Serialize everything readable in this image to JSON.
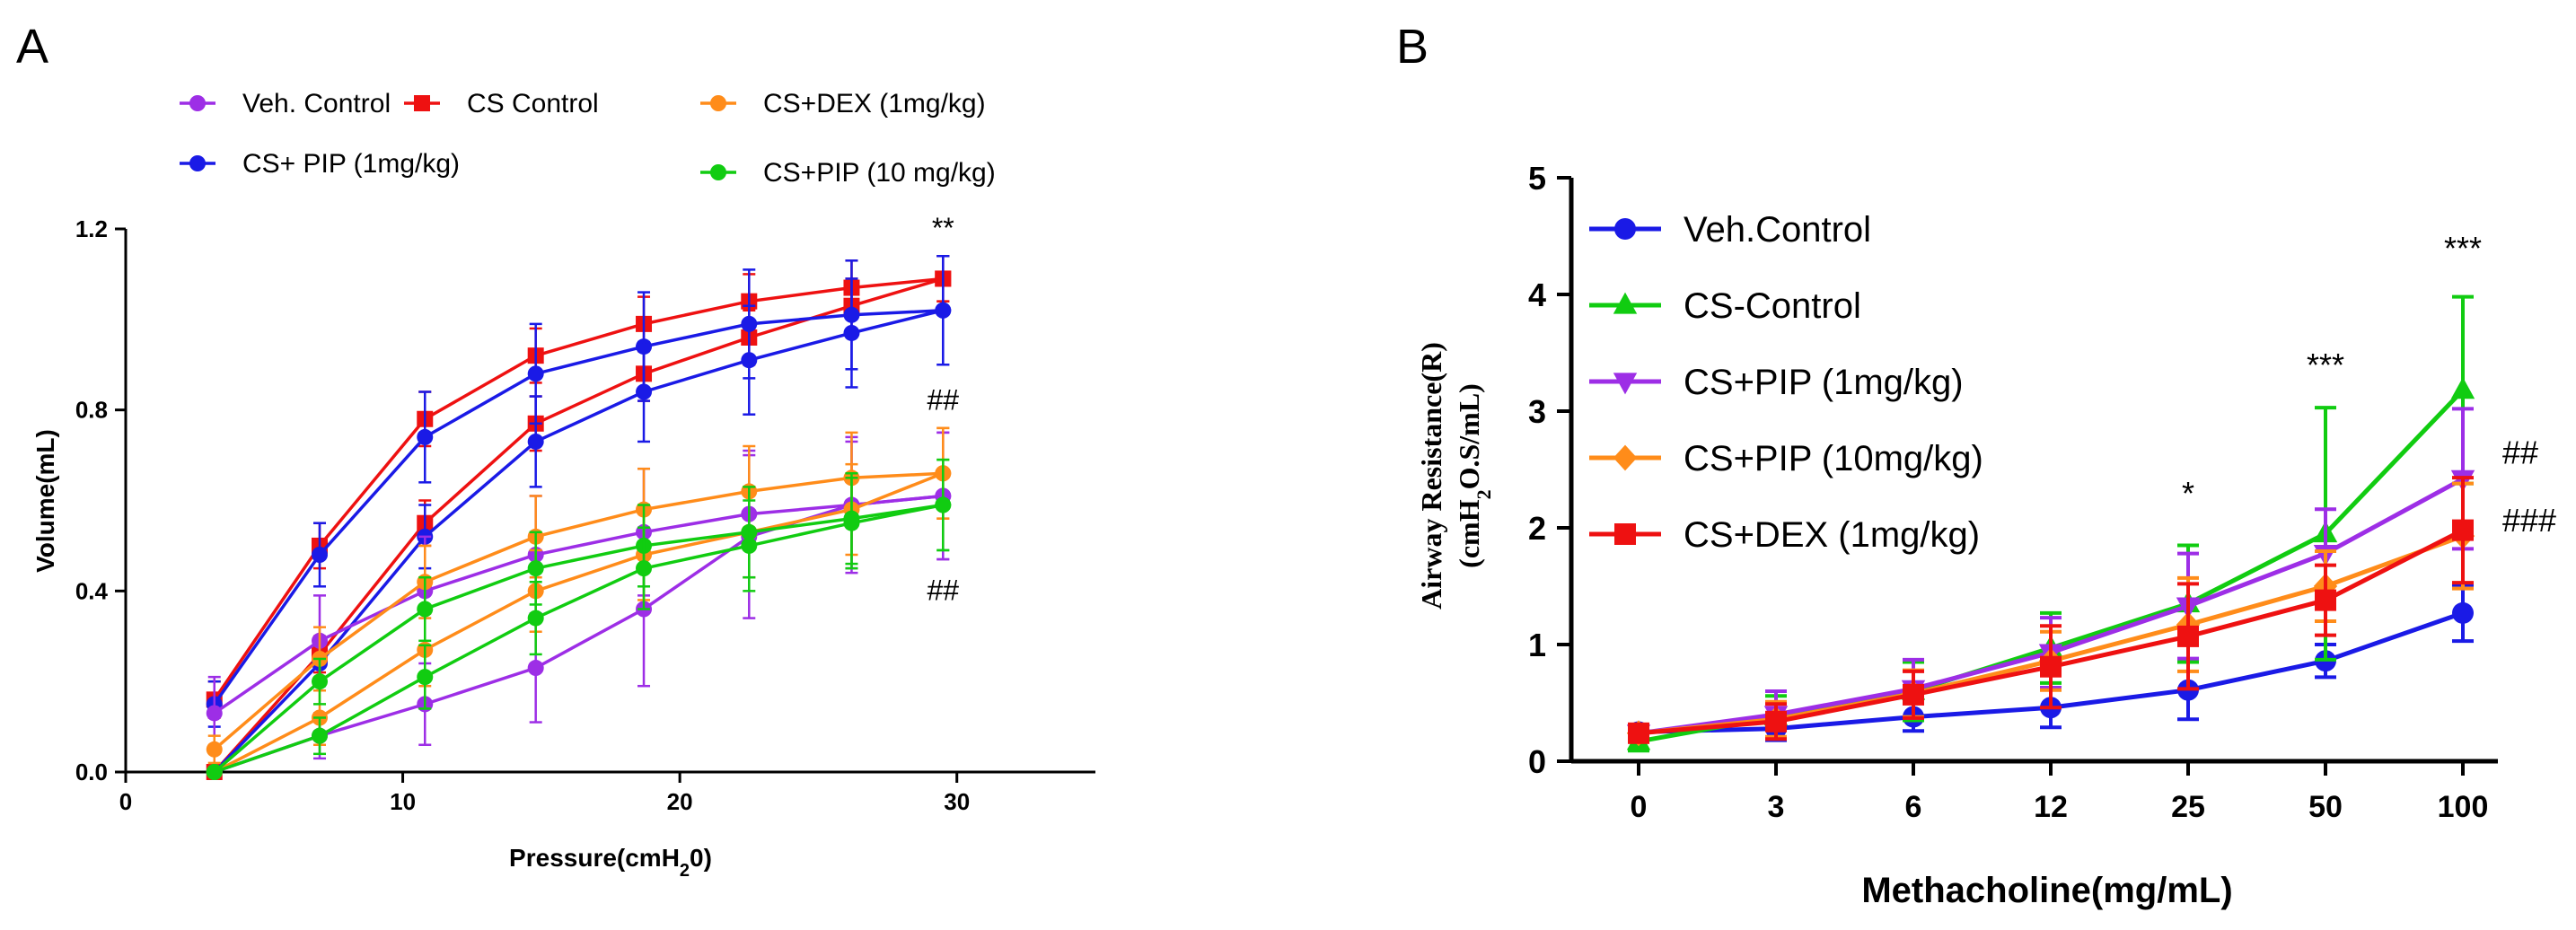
{
  "colors": {
    "purple": "#9d2ee6",
    "red": "#ee1111",
    "orange": "#ff8c1a",
    "blue": "#1a1ae6",
    "green": "#11cc11",
    "axis": "#000000"
  },
  "chart_data": [
    {
      "panel_label": "A",
      "type": "line",
      "title": "",
      "xlabel": "Pressure(cmH",
      "xlabel_sub": "2",
      "xlabel_tail": "0)",
      "ylabel": "Volume(mL)",
      "xlim": [
        0,
        35
      ],
      "ylim": [
        0,
        1.2
      ],
      "xticks": [
        0,
        10,
        20,
        30
      ],
      "yticks": [
        0.0,
        0.4,
        0.8,
        1.2
      ],
      "ytick_labels": [
        "0.0",
        "0.4",
        "0.8",
        "1.2"
      ],
      "legend": [
        {
          "label": "Veh. Control",
          "color": "purple",
          "marker": "circle"
        },
        {
          "label": "CS Control",
          "color": "red",
          "marker": "square"
        },
        {
          "label": "CS+DEX (1mg/kg)",
          "color": "orange",
          "marker": "circle"
        },
        {
          "label": "CS+ PIP (1mg/kg)",
          "color": "blue",
          "marker": "circle"
        },
        {
          "label": "CS+PIP  (10 mg/kg)",
          "color": "green",
          "marker": "circle"
        }
      ],
      "series": [
        {
          "name": "CS Control upper",
          "color": "red",
          "marker": "square",
          "x": [
            3.2,
            7,
            10.8,
            14.8,
            18.7,
            22.5,
            26.2,
            29.5
          ],
          "y": [
            0.16,
            0.5,
            0.78,
            0.92,
            0.99,
            1.04,
            1.07,
            1.09
          ],
          "err": [
            0.04,
            0.05,
            0.06,
            0.06,
            0.06,
            0.06,
            0.06,
            0.05
          ]
        },
        {
          "name": "CS Control lower",
          "color": "red",
          "marker": "square",
          "x": [
            3.2,
            7,
            10.8,
            14.8,
            18.7,
            22.5,
            26.2,
            29.5
          ],
          "y": [
            0.0,
            0.26,
            0.55,
            0.77,
            0.88,
            0.96,
            1.03,
            1.09
          ],
          "err": [
            0.0,
            0.04,
            0.05,
            0.06,
            0.06,
            0.06,
            0.06,
            0.05
          ]
        },
        {
          "name": "CS+ PIP upper",
          "color": "blue",
          "marker": "circle",
          "x": [
            3.2,
            7,
            10.8,
            14.8,
            18.7,
            22.5,
            26.2,
            29.5
          ],
          "y": [
            0.15,
            0.48,
            0.74,
            0.88,
            0.94,
            0.99,
            1.01,
            1.02
          ],
          "err": [
            0.05,
            0.07,
            0.1,
            0.11,
            0.12,
            0.12,
            0.12,
            0.12
          ]
        },
        {
          "name": "CS+ PIP lower",
          "color": "blue",
          "marker": "circle",
          "x": [
            3.2,
            7,
            10.8,
            14.8,
            18.7,
            22.5,
            26.2,
            29.5
          ],
          "y": [
            0.0,
            0.24,
            0.52,
            0.73,
            0.84,
            0.91,
            0.97,
            1.02
          ],
          "err": [
            0.0,
            0.05,
            0.07,
            0.1,
            0.11,
            0.12,
            0.12,
            0.12
          ]
        },
        {
          "name": "Veh. Control upper",
          "color": "purple",
          "marker": "circle",
          "x": [
            3.2,
            7,
            10.8,
            14.8,
            18.7,
            22.5,
            26.2,
            29.5
          ],
          "y": [
            0.13,
            0.29,
            0.4,
            0.48,
            0.53,
            0.57,
            0.59,
            0.61
          ],
          "err": [
            0.08,
            0.1,
            0.12,
            0.13,
            0.14,
            0.14,
            0.14,
            0.14
          ]
        },
        {
          "name": "Veh. Control lower",
          "color": "purple",
          "marker": "circle",
          "x": [
            3.2,
            7,
            10.8,
            14.8,
            18.7,
            22.5,
            26.2,
            29.5
          ],
          "y": [
            0.0,
            0.08,
            0.15,
            0.23,
            0.36,
            0.52,
            0.59,
            0.61
          ],
          "err": [
            0.0,
            0.05,
            0.09,
            0.12,
            0.17,
            0.18,
            0.15,
            0.14
          ]
        },
        {
          "name": "CS+DEX upper",
          "color": "orange",
          "marker": "circle",
          "x": [
            3.2,
            7,
            10.8,
            14.8,
            18.7,
            22.5,
            26.2,
            29.5
          ],
          "y": [
            0.05,
            0.25,
            0.42,
            0.52,
            0.58,
            0.62,
            0.65,
            0.66
          ],
          "err": [
            0.03,
            0.07,
            0.08,
            0.09,
            0.09,
            0.1,
            0.1,
            0.1
          ]
        },
        {
          "name": "CS+DEX lower",
          "color": "orange",
          "marker": "circle",
          "x": [
            3.2,
            7,
            10.8,
            14.8,
            18.7,
            22.5,
            26.2,
            29.5
          ],
          "y": [
            0.0,
            0.12,
            0.27,
            0.4,
            0.48,
            0.53,
            0.58,
            0.66
          ],
          "err": [
            0.0,
            0.06,
            0.08,
            0.09,
            0.1,
            0.1,
            0.1,
            0.1
          ]
        },
        {
          "name": "CS+PIP (10) upper",
          "color": "green",
          "marker": "circle",
          "x": [
            3.2,
            7,
            10.8,
            14.8,
            18.7,
            22.5,
            26.2,
            29.5
          ],
          "y": [
            0.0,
            0.2,
            0.36,
            0.45,
            0.5,
            0.53,
            0.56,
            0.59
          ],
          "err": [
            0.0,
            0.05,
            0.07,
            0.08,
            0.09,
            0.1,
            0.1,
            0.1
          ]
        },
        {
          "name": "CS+PIP (10) lower",
          "color": "green",
          "marker": "circle",
          "x": [
            3.2,
            7,
            10.8,
            14.8,
            18.7,
            22.5,
            26.2,
            29.5
          ],
          "y": [
            0.0,
            0.08,
            0.21,
            0.34,
            0.45,
            0.5,
            0.55,
            0.59
          ],
          "err": [
            0.0,
            0.04,
            0.07,
            0.08,
            0.09,
            0.1,
            0.1,
            0.1
          ]
        }
      ],
      "annotations": [
        {
          "text": "**",
          "x": 29.5,
          "y": 1.18
        },
        {
          "text": "##",
          "x": 29.5,
          "y": 0.8
        },
        {
          "text": "##",
          "x": 29.5,
          "y": 0.38
        }
      ]
    },
    {
      "panel_label": "B",
      "type": "line",
      "title": "",
      "xlabel": "Methacholine(mg/mL)",
      "ylabel_line1": "Airway Resistance(R)",
      "ylabel_line2": "(cmH",
      "ylabel_line2_sub": "2",
      "ylabel_line2_tail": "O.S/mL)",
      "categories": [
        "0",
        "3",
        "6",
        "12",
        "25",
        "50",
        "100"
      ],
      "ylim": [
        0,
        5
      ],
      "yticks": [
        0,
        1,
        2,
        3,
        4,
        5
      ],
      "ytick_labels": [
        "0",
        "1",
        "2",
        "3",
        "4",
        "5"
      ],
      "legend": [
        {
          "label": "Veh.Control",
          "color": "blue",
          "marker": "circle"
        },
        {
          "label": "CS-Control",
          "color": "green",
          "marker": "triangle"
        },
        {
          "label": "CS+PIP (1mg/kg)",
          "color": "purple",
          "marker": "triangle-down"
        },
        {
          "label": "CS+PIP  (10mg/kg)",
          "color": "orange",
          "marker": "diamond"
        },
        {
          "label": "CS+DEX  (1mg/kg)",
          "color": "red",
          "marker": "square"
        }
      ],
      "series": [
        {
          "name": "Veh.Control",
          "color": "blue",
          "marker": "circle",
          "values": [
            0.25,
            0.28,
            0.38,
            0.46,
            0.61,
            0.86,
            1.27
          ],
          "err": [
            0.06,
            0.1,
            0.12,
            0.17,
            0.25,
            0.14,
            0.24
          ]
        },
        {
          "name": "CS-Control",
          "color": "green",
          "marker": "triangle",
          "values": [
            0.17,
            0.38,
            0.6,
            0.97,
            1.35,
            1.95,
            3.18
          ],
          "err": [
            0.08,
            0.18,
            0.25,
            0.3,
            0.5,
            1.08,
            0.8
          ]
        },
        {
          "name": "CS+PIP (1mg/kg)",
          "color": "purple",
          "marker": "triangle-down",
          "values": [
            0.24,
            0.4,
            0.62,
            0.93,
            1.33,
            1.78,
            2.42
          ],
          "err": [
            0.06,
            0.2,
            0.25,
            0.3,
            0.45,
            0.38,
            0.6
          ]
        },
        {
          "name": "CS+PIP  (10mg/kg)",
          "color": "orange",
          "marker": "diamond",
          "values": [
            0.24,
            0.36,
            0.58,
            0.86,
            1.17,
            1.5,
            1.93
          ],
          "err": [
            0.06,
            0.15,
            0.2,
            0.25,
            0.4,
            0.3,
            0.45
          ]
        },
        {
          "name": "CS+DEX  (1mg/kg)",
          "color": "red",
          "marker": "square",
          "values": [
            0.24,
            0.34,
            0.57,
            0.81,
            1.07,
            1.38,
            1.98
          ],
          "err": [
            0.06,
            0.15,
            0.2,
            0.35,
            0.45,
            0.3,
            0.45
          ]
        }
      ],
      "annotations": [
        {
          "text": "*",
          "category": "25",
          "y": 2.2
        },
        {
          "text": "***",
          "category": "50",
          "y": 3.3
        },
        {
          "text": "***",
          "category": "100",
          "y": 4.3
        },
        {
          "text": "##",
          "category": "100",
          "y": 2.55,
          "side": "right"
        },
        {
          "text": "###",
          "category": "100",
          "y": 1.97,
          "side": "right"
        }
      ]
    }
  ]
}
